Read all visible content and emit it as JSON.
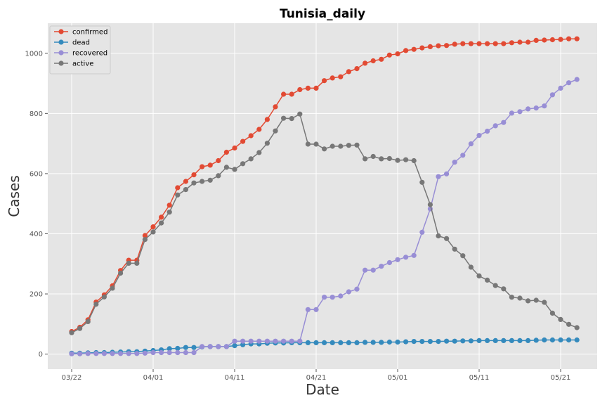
{
  "chart_data": {
    "type": "line",
    "title": "Tunisia_daily",
    "xlabel": "Date",
    "ylabel": "Cases",
    "x_start": "03/22",
    "x_end": "05/23",
    "x_ticks": [
      "03/22",
      "04/01",
      "04/11",
      "04/21",
      "05/01",
      "05/11",
      "05/21"
    ],
    "y_ticks": [
      0,
      200,
      400,
      600,
      800,
      1000
    ],
    "ylim": [
      -50,
      1100
    ],
    "grid": true,
    "legend_position": "top-left",
    "series": [
      {
        "name": "confirmed",
        "color": "#e24a33",
        "values": [
          75,
          89,
          114,
          173,
          197,
          227,
          278,
          312,
          312,
          394,
          423,
          455,
          495,
          553,
          574,
          596,
          623,
          628,
          643,
          671,
          685,
          707,
          726,
          747,
          780,
          822,
          864,
          864,
          879,
          884,
          884,
          909,
          918,
          922,
          939,
          949,
          967,
          975,
          980,
          994,
          998,
          1009,
          1013,
          1018,
          1022,
          1025,
          1026,
          1030,
          1032,
          1032,
          1032,
          1032,
          1032,
          1032,
          1035,
          1037,
          1037,
          1043,
          1044,
          1045,
          1046,
          1048,
          1048
        ]
      },
      {
        "name": "dead",
        "color": "#348abd",
        "values": [
          3,
          3,
          4,
          5,
          5,
          6,
          7,
          8,
          8,
          10,
          12,
          14,
          18,
          19,
          22,
          22,
          24,
          25,
          25,
          25,
          28,
          31,
          34,
          34,
          36,
          37,
          37,
          38,
          38,
          38,
          38,
          38,
          38,
          38,
          38,
          38,
          39,
          39,
          39,
          40,
          40,
          41,
          42,
          42,
          42,
          42,
          43,
          43,
          44,
          44,
          45,
          45,
          45,
          45,
          45,
          45,
          45,
          46,
          47,
          47,
          47,
          47,
          47
        ]
      },
      {
        "name": "recovered",
        "color": "#988ed5",
        "values": [
          1,
          1,
          2,
          2,
          2,
          2,
          2,
          2,
          2,
          3,
          5,
          5,
          5,
          5,
          5,
          5,
          25,
          25,
          25,
          25,
          43,
          43,
          43,
          43,
          43,
          43,
          43,
          43,
          43,
          148,
          148,
          189,
          189,
          193,
          207,
          216,
          279,
          279,
          292,
          304,
          314,
          322,
          328,
          405,
          483,
          590,
          599,
          638,
          661,
          699,
          727,
          741,
          759,
          770,
          801,
          806,
          815,
          818,
          825,
          862,
          884,
          902,
          913
        ]
      },
      {
        "name": "active",
        "color": "#777777",
        "values": [
          71,
          85,
          108,
          166,
          190,
          219,
          269,
          302,
          302,
          381,
          406,
          436,
          472,
          529,
          547,
          569,
          574,
          578,
          593,
          621,
          614,
          633,
          649,
          670,
          701,
          742,
          784,
          783,
          798,
          698,
          698,
          682,
          691,
          691,
          694,
          695,
          649,
          657,
          649,
          650,
          644,
          646,
          643,
          571,
          497,
          393,
          384,
          349,
          327,
          289,
          260,
          246,
          228,
          217,
          189,
          186,
          177,
          179,
          172,
          136,
          115,
          99,
          88
        ]
      }
    ]
  }
}
